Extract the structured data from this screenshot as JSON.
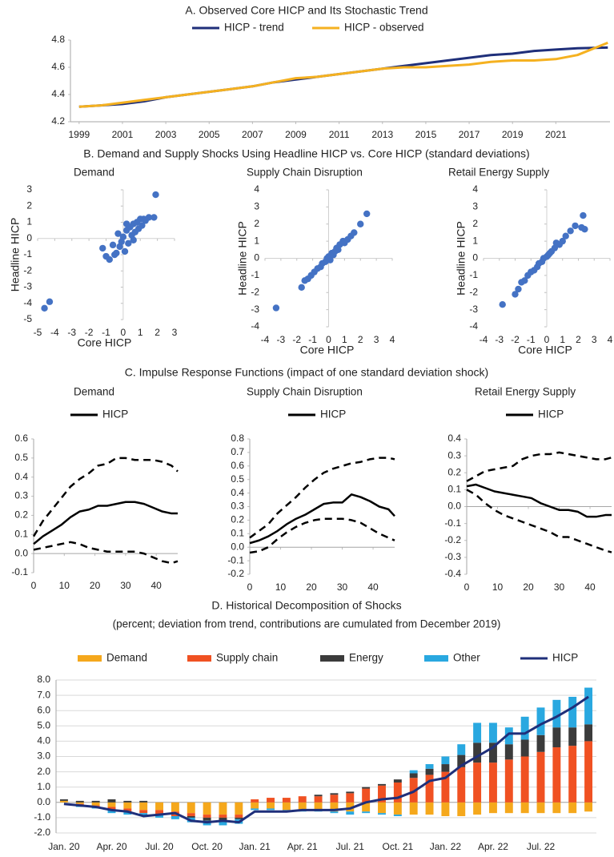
{
  "chart_data": [
    {
      "type": "line",
      "title": "A. Observed Core HICP and Its Stochastic Trend",
      "x": [
        1999,
        2000,
        2001,
        2002,
        2003,
        2004,
        2005,
        2006,
        2007,
        2008,
        2009,
        2010,
        2011,
        2012,
        2013,
        2014,
        2015,
        2016,
        2017,
        2018,
        2019,
        2020,
        2021,
        2022,
        2023.4
      ],
      "series": [
        {
          "name": "HICP - trend",
          "color": "#1f2f7a",
          "values": [
            4.31,
            4.32,
            4.33,
            4.35,
            4.38,
            4.4,
            4.42,
            4.44,
            4.46,
            4.49,
            4.51,
            4.53,
            4.55,
            4.57,
            4.59,
            4.61,
            4.63,
            4.65,
            4.67,
            4.69,
            4.7,
            4.72,
            4.73,
            4.74,
            4.745
          ]
        },
        {
          "name": "HICP - observed",
          "color": "#f5b120",
          "values": [
            4.31,
            4.32,
            4.34,
            4.36,
            4.38,
            4.4,
            4.42,
            4.44,
            4.46,
            4.49,
            4.52,
            4.53,
            4.55,
            4.57,
            4.59,
            4.6,
            4.6,
            4.61,
            4.62,
            4.64,
            4.65,
            4.65,
            4.66,
            4.69,
            4.78
          ]
        }
      ],
      "xlim": [
        1998.6,
        2023.5
      ],
      "xticks": [
        1999,
        2001,
        2003,
        2005,
        2007,
        2009,
        2011,
        2013,
        2015,
        2017,
        2019,
        2021
      ],
      "ylim": [
        4.2,
        4.8
      ],
      "yticks": [
        4.2,
        4.4,
        4.6,
        4.8
      ]
    },
    {
      "type": "scatter",
      "title": "B. Demand and Supply Shocks Using Headline HICP vs. Core HICP (standard deviations)",
      "subtitle": "Demand",
      "x_label": "Core HICP",
      "y_label": "Headline HICP",
      "color": "#4472c4",
      "x": [
        -4.6,
        -4.3,
        -1.2,
        -1.0,
        -0.8,
        -0.6,
        -0.5,
        -0.3,
        -0.2,
        -0.1,
        0.0,
        0.1,
        0.2,
        0.3,
        0.4,
        0.5,
        0.6,
        0.7,
        0.8,
        0.9,
        1.0,
        1.1,
        1.3,
        1.5,
        1.8,
        1.9,
        -0.4,
        0.2,
        0.6,
        1.2
      ],
      "values": [
        -4.3,
        -3.9,
        -0.6,
        -1.1,
        -1.3,
        -0.4,
        -1.0,
        0.3,
        -0.5,
        -0.2,
        0.1,
        -0.8,
        0.5,
        -0.3,
        0.7,
        0.2,
        0.9,
        0.4,
        1.0,
        0.6,
        1.2,
        0.8,
        1.1,
        1.3,
        1.3,
        2.7,
        -0.9,
        0.9,
        -0.1,
        1.2
      ],
      "xlim": [
        -5,
        3
      ],
      "xticks": [
        -5,
        -4,
        -3,
        -2,
        -1,
        0,
        1,
        2,
        3
      ],
      "ylim": [
        -5,
        3
      ],
      "yticks": [
        -5,
        -4,
        -3,
        -2,
        -1,
        0,
        1,
        2,
        3
      ]
    },
    {
      "type": "scatter",
      "subtitle": "Supply Chain Disruption",
      "x_label": "Core HICP",
      "y_label": "Headline HICP",
      "color": "#4472c4",
      "x": [
        -3.3,
        -1.7,
        -1.5,
        -1.3,
        -1.1,
        -0.9,
        -0.7,
        -0.5,
        -0.4,
        -0.2,
        -0.1,
        0.0,
        0.1,
        0.2,
        0.3,
        0.4,
        0.5,
        0.6,
        0.7,
        0.9,
        1.0,
        1.2,
        1.4,
        1.6,
        2.0,
        2.4
      ],
      "values": [
        -2.9,
        -1.7,
        -1.3,
        -1.2,
        -1.0,
        -0.8,
        -0.6,
        -0.5,
        -0.3,
        -0.2,
        0.0,
        0.1,
        -0.1,
        0.3,
        0.2,
        0.4,
        0.6,
        0.5,
        0.8,
        1.0,
        0.9,
        1.1,
        1.3,
        1.5,
        2.0,
        2.6
      ],
      "xlim": [
        -4,
        4
      ],
      "xticks": [
        -4,
        -3,
        -2,
        -1,
        0,
        1,
        2,
        3,
        4
      ],
      "ylim": [
        -4,
        4
      ],
      "yticks": [
        -4,
        -3,
        -2,
        -1,
        0,
        1,
        2,
        3,
        4
      ]
    },
    {
      "type": "scatter",
      "subtitle": "Retail Energy Supply",
      "x_label": "Core HICP",
      "y_label": "Headline HICP",
      "color": "#4472c4",
      "x": [
        -2.8,
        -2.0,
        -1.8,
        -1.6,
        -1.4,
        -1.2,
        -1.0,
        -0.8,
        -0.6,
        -0.5,
        -0.3,
        -0.2,
        0.0,
        0.1,
        0.2,
        0.3,
        0.5,
        0.6,
        0.8,
        1.0,
        1.2,
        1.5,
        1.8,
        2.2,
        2.3,
        2.4
      ],
      "values": [
        -2.7,
        -2.1,
        -1.8,
        -1.4,
        -1.3,
        -1.0,
        -0.8,
        -0.7,
        -0.5,
        -0.3,
        -0.2,
        0.0,
        0.1,
        0.2,
        0.3,
        0.4,
        0.6,
        0.9,
        0.8,
        1.0,
        1.3,
        1.6,
        1.9,
        1.8,
        2.5,
        1.7
      ],
      "xlim": [
        -4,
        4
      ],
      "xticks": [
        -4,
        -3,
        -2,
        -1,
        0,
        1,
        2,
        3,
        4
      ],
      "ylim": [
        -4,
        4
      ],
      "yticks": [
        -4,
        -3,
        -2,
        -1,
        0,
        1,
        2,
        3,
        4
      ]
    },
    {
      "type": "line",
      "title": "C. Impulse Response Functions (impact of one standard deviation shock)",
      "subtitle": "Demand",
      "x": [
        0,
        3,
        6,
        9,
        12,
        15,
        18,
        21,
        24,
        27,
        30,
        33,
        36,
        39,
        42,
        45,
        47
      ],
      "series": [
        {
          "name": "HICP",
          "color": "#000000",
          "values": [
            0.05,
            0.09,
            0.12,
            0.15,
            0.19,
            0.22,
            0.23,
            0.25,
            0.25,
            0.26,
            0.27,
            0.27,
            0.26,
            0.24,
            0.22,
            0.21,
            0.21
          ]
        },
        {
          "color": "#000000",
          "dashed": true,
          "values": [
            0.09,
            0.17,
            0.23,
            0.29,
            0.35,
            0.39,
            0.42,
            0.46,
            0.47,
            0.5,
            0.5,
            0.49,
            0.49,
            0.49,
            0.48,
            0.46,
            0.43
          ]
        },
        {
          "color": "#000000",
          "dashed": true,
          "values": [
            0.02,
            0.03,
            0.04,
            0.05,
            0.06,
            0.05,
            0.03,
            0.02,
            0.01,
            0.01,
            0.01,
            0.01,
            0.0,
            -0.02,
            -0.04,
            -0.05,
            -0.04
          ]
        }
      ],
      "xlim": [
        0,
        47
      ],
      "xticks": [
        0,
        10,
        20,
        30,
        40
      ],
      "ylim": [
        -0.1,
        0.6
      ],
      "yticks": [
        -0.1,
        {
          "value": 0,
          "label": "0.0"
        },
        0.1,
        0.2,
        0.3,
        0.4,
        0.5,
        0.6
      ]
    },
    {
      "type": "line",
      "subtitle": "Supply Chain Disruption",
      "x": [
        0,
        3,
        6,
        9,
        12,
        15,
        18,
        21,
        24,
        27,
        30,
        33,
        36,
        39,
        42,
        45,
        47
      ],
      "series": [
        {
          "name": "HICP",
          "color": "#000000",
          "values": [
            0.03,
            0.05,
            0.08,
            0.12,
            0.17,
            0.21,
            0.24,
            0.28,
            0.32,
            0.33,
            0.33,
            0.39,
            0.37,
            0.34,
            0.3,
            0.28,
            0.23
          ]
        },
        {
          "color": "#000000",
          "dashed": true,
          "values": [
            0.07,
            0.12,
            0.17,
            0.25,
            0.31,
            0.37,
            0.44,
            0.5,
            0.55,
            0.58,
            0.6,
            0.62,
            0.63,
            0.65,
            0.66,
            0.66,
            0.65
          ]
        },
        {
          "color": "#000000",
          "dashed": true,
          "values": [
            -0.04,
            -0.03,
            0.0,
            0.06,
            0.11,
            0.15,
            0.18,
            0.2,
            0.21,
            0.21,
            0.21,
            0.2,
            0.18,
            0.14,
            0.1,
            0.07,
            0.05
          ]
        }
      ],
      "xlim": [
        0,
        47
      ],
      "xticks": [
        0,
        10,
        20,
        30,
        40
      ],
      "ylim": [
        -0.2,
        0.8
      ],
      "yticks": [
        -0.2,
        -0.1,
        {
          "value": 0,
          "label": "0.0"
        },
        0.1,
        0.2,
        0.3,
        0.4,
        0.5,
        0.6,
        0.7,
        0.8
      ]
    },
    {
      "type": "line",
      "subtitle": "Retail Energy Supply",
      "x": [
        0,
        3,
        6,
        9,
        12,
        15,
        18,
        21,
        24,
        27,
        30,
        33,
        36,
        39,
        42,
        45,
        47
      ],
      "series": [
        {
          "name": "HICP",
          "color": "#000000",
          "values": [
            0.12,
            0.13,
            0.11,
            0.09,
            0.08,
            0.07,
            0.06,
            0.05,
            0.02,
            0.0,
            -0.02,
            -0.02,
            -0.03,
            -0.06,
            -0.06,
            -0.05,
            -0.05
          ]
        },
        {
          "color": "#000000",
          "dashed": true,
          "values": [
            0.15,
            0.18,
            0.21,
            0.22,
            0.23,
            0.24,
            0.28,
            0.3,
            0.31,
            0.31,
            0.32,
            0.31,
            0.3,
            0.29,
            0.28,
            0.28,
            0.29
          ]
        },
        {
          "color": "#000000",
          "dashed": true,
          "values": [
            0.1,
            0.07,
            0.02,
            -0.02,
            -0.05,
            -0.07,
            -0.09,
            -0.11,
            -0.13,
            -0.15,
            -0.18,
            -0.18,
            -0.2,
            -0.22,
            -0.24,
            -0.26,
            -0.27
          ]
        }
      ],
      "xlim": [
        0,
        47
      ],
      "xticks": [
        0,
        10,
        20,
        30,
        40
      ],
      "ylim": [
        -0.4,
        0.4
      ],
      "yticks": [
        -0.4,
        -0.3,
        -0.2,
        -0.1,
        {
          "value": 0,
          "label": "0.0"
        },
        0.1,
        0.2,
        0.3,
        0.4
      ]
    },
    {
      "type": "bar",
      "stacked": true,
      "grid": true,
      "title": "D. Historical Decomposition of Shocks",
      "subtitle": "(percent; deviation from trend, contributions are cumulated from December 2019)",
      "categories": [
        "Jan. 20",
        null,
        null,
        "Apr. 20",
        null,
        null,
        "Jul. 20",
        null,
        null,
        "Oct. 20",
        null,
        null,
        "Jan. 21",
        null,
        null,
        "Apr. 21",
        null,
        null,
        "Jul. 21",
        null,
        null,
        "Oct. 21",
        null,
        null,
        "Jan. 22",
        null,
        null,
        "Apr. 22",
        null,
        null,
        "Jul. 22",
        null,
        null,
        null
      ],
      "series": [
        {
          "name": "Demand",
          "color": "#f5a81c",
          "values": [
            0.1,
            -0.1,
            -0.2,
            -0.3,
            -0.4,
            -0.5,
            -0.5,
            -0.6,
            -0.7,
            -0.8,
            -0.8,
            -0.8,
            -0.4,
            -0.4,
            -0.5,
            -0.5,
            -0.5,
            -0.6,
            -0.6,
            -0.6,
            -0.7,
            -0.8,
            -0.8,
            -0.8,
            -0.9,
            -0.9,
            -0.8,
            -0.7,
            -0.7,
            -0.7,
            -0.7,
            -0.7,
            -0.7,
            -0.6
          ]
        },
        {
          "name": "Supply chain",
          "color": "#f05122",
          "values": [
            0.0,
            -0.1,
            -0.1,
            -0.2,
            -0.2,
            -0.2,
            -0.3,
            -0.3,
            -0.2,
            -0.2,
            -0.2,
            -0.2,
            0.2,
            0.3,
            0.3,
            0.4,
            0.4,
            0.5,
            0.6,
            0.9,
            1.1,
            1.3,
            1.6,
            1.8,
            2.0,
            2.3,
            2.6,
            2.6,
            2.8,
            3.0,
            3.3,
            3.6,
            3.7,
            4.0
          ]
        },
        {
          "name": "Energy",
          "color": "#3b3b3b",
          "values": [
            0.1,
            0.1,
            0.1,
            0.2,
            0.1,
            0.1,
            0.0,
            0.0,
            -0.1,
            -0.2,
            -0.2,
            -0.1,
            0.0,
            0.0,
            0.0,
            0.0,
            0.1,
            0.1,
            0.1,
            0.1,
            0.1,
            0.2,
            0.3,
            0.4,
            0.5,
            0.8,
            1.3,
            1.3,
            1.0,
            1.1,
            1.1,
            1.3,
            1.2,
            1.1
          ]
        },
        {
          "name": "Other",
          "color": "#29a8e0",
          "values": [
            0.0,
            -0.1,
            -0.1,
            -0.2,
            -0.2,
            -0.2,
            -0.2,
            -0.2,
            -0.3,
            -0.3,
            -0.3,
            -0.3,
            -0.1,
            -0.1,
            -0.1,
            -0.1,
            -0.1,
            -0.1,
            -0.2,
            -0.1,
            -0.1,
            -0.1,
            0.2,
            0.3,
            0.5,
            0.7,
            1.3,
            1.3,
            1.1,
            1.5,
            1.8,
            1.8,
            2.0,
            2.4
          ]
        },
        {
          "name": "HICP",
          "type": "line",
          "color": "#1f2f7a",
          "values": [
            -0.1,
            -0.2,
            -0.3,
            -0.5,
            -0.6,
            -0.9,
            -0.8,
            -0.7,
            -1.2,
            -1.3,
            -1.2,
            -1.3,
            -0.6,
            -0.6,
            -0.6,
            -0.5,
            -0.5,
            -0.5,
            -0.4,
            0.0,
            0.2,
            0.3,
            0.7,
            1.4,
            1.6,
            2.4,
            3.0,
            3.6,
            4.5,
            4.5,
            5.1,
            5.6,
            6.2,
            6.9
          ]
        }
      ],
      "ylim": [
        -2,
        8
      ],
      "yticks": [
        {
          "value": -2,
          "label": "-2.0"
        },
        {
          "value": -1,
          "label": "-1.0"
        },
        {
          "value": 0,
          "label": "0.0"
        },
        {
          "value": 1,
          "label": "1.0"
        },
        {
          "value": 2,
          "label": "2.0"
        },
        {
          "value": 3,
          "label": "3.0"
        },
        {
          "value": 4,
          "label": "4.0"
        },
        {
          "value": 5,
          "label": "5.0"
        },
        {
          "value": 6,
          "label": "6.0"
        },
        {
          "value": 7,
          "label": "7.0"
        },
        {
          "value": 8,
          "label": "8.0"
        }
      ]
    }
  ]
}
